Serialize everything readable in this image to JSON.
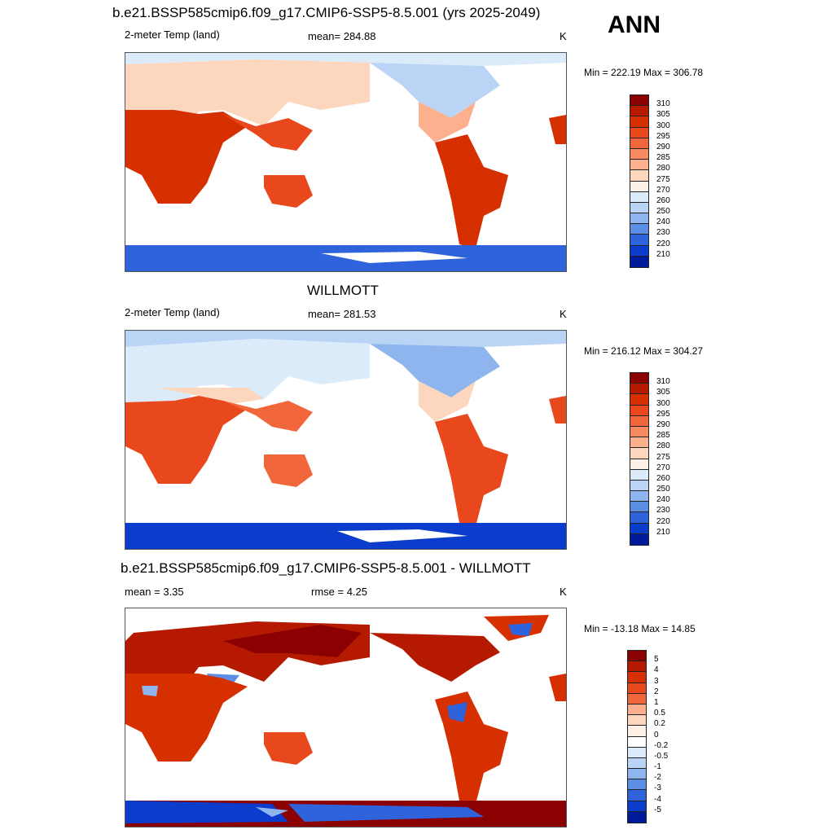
{
  "season": "ANN",
  "panels": [
    {
      "title": "b.e21.BSSP585cmip6.f09_g17.CMIP6-SSP5-8.5.001 (yrs 2025-2049)",
      "left_label": "2-meter Temp (land)",
      "center_label": "mean= 284.88",
      "units": "K",
      "minmax": "Min = 222.19 Max = 306.78",
      "levels": [
        "310",
        "305",
        "300",
        "295",
        "290",
        "285",
        "280",
        "275",
        "270",
        "260",
        "250",
        "240",
        "230",
        "220",
        "210"
      ],
      "colors": [
        "#8b0000",
        "#b51a00",
        "#d62f00",
        "#e8481c",
        "#f2663c",
        "#f88a5f",
        "#fcb08d",
        "#fdd6be",
        "#fdf0e6",
        "#dcebfa",
        "#b9d4f5",
        "#8eb5ee",
        "#5d8ee6",
        "#2e63dc",
        "#0c3ccc",
        "#001a9c"
      ]
    },
    {
      "title": "WILLMOTT",
      "left_label": "2-meter Temp (land)",
      "center_label": "mean= 281.53",
      "units": "K",
      "minmax": "Min = 216.12 Max = 304.27",
      "levels": [
        "310",
        "305",
        "300",
        "295",
        "290",
        "285",
        "280",
        "275",
        "270",
        "260",
        "250",
        "240",
        "230",
        "220",
        "210"
      ],
      "colors": [
        "#8b0000",
        "#b51a00",
        "#d62f00",
        "#e8481c",
        "#f2663c",
        "#f88a5f",
        "#fcb08d",
        "#fdd6be",
        "#fdf0e6",
        "#dcebfa",
        "#b9d4f5",
        "#8eb5ee",
        "#5d8ee6",
        "#2e63dc",
        "#0c3ccc",
        "#001a9c"
      ]
    },
    {
      "title": "b.e21.BSSP585cmip6.f09_g17.CMIP6-SSP5-8.5.001 - WILLMOTT",
      "left_label": "mean =   3.35",
      "center_label": "rmse =   4.25",
      "units": "K",
      "minmax": "Min = -13.18 Max =  14.85",
      "levels": [
        "5",
        "4",
        "3",
        "2",
        "1",
        "0.5",
        "0.2",
        "0",
        "-0.2",
        "-0.5",
        "-1",
        "-2",
        "-3",
        "-4",
        "-5"
      ],
      "colors": [
        "#8b0000",
        "#b51a00",
        "#d62f00",
        "#e8481c",
        "#f2663c",
        "#fcb08d",
        "#fdd6be",
        "#fdf0e6",
        "#ffffff",
        "#dcebfa",
        "#b9d4f5",
        "#8eb5ee",
        "#5d8ee6",
        "#2e63dc",
        "#0c3ccc",
        "#001a9c"
      ]
    }
  ]
}
